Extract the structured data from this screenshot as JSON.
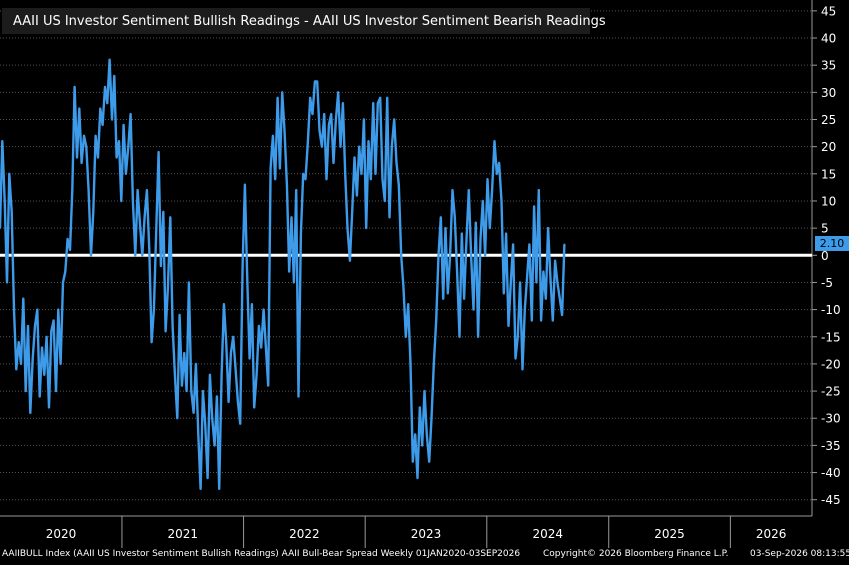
{
  "legend": {
    "label": "AAII US Investor Sentiment Bullish Readings - AAII US Investor Sentiment Bearish Readings"
  },
  "last_value_label": "2.10",
  "footer": {
    "left": "AAIIBULL Index (AAII US Investor Sentiment Bullish Readings) AAII Bull-Bear Spread Weekly 01JAN2020-03SEP2026",
    "copyright": "Copyright© 2026 Bloomberg Finance L.P.",
    "timestamp": "03-Sep-2026 08:13:55"
  },
  "colors": {
    "series": "#3d9be9",
    "zero_line": "#ffffff",
    "grid": "#555555",
    "background": "#000000",
    "legend_bg": "#1c1c1c"
  },
  "chart_data": {
    "type": "line",
    "x_start": "2020-01-01",
    "x_end": "2026-09-03",
    "x_tick_labels": [
      "2020",
      "2021",
      "2022",
      "2023",
      "2024",
      "2025",
      "2026"
    ],
    "ylim": [
      -48,
      47
    ],
    "y_ticks": [
      45,
      40,
      35,
      30,
      25,
      20,
      15,
      10,
      5,
      0,
      -5,
      -10,
      -15,
      -20,
      -25,
      -30,
      -35,
      -40,
      -45
    ],
    "grid": "horizontal dotted",
    "legend_position": "top-left",
    "reference_line": 0,
    "series": [
      {
        "name": "AAII US Investor Sentiment Bullish Readings - AAII US Investor Sentiment Bearish Readings",
        "values": [
          {
            "x": "2020-01-01",
            "y": 5
          },
          {
            "x": "2020-01-08",
            "y": 21
          },
          {
            "x": "2020-01-15",
            "y": 10
          },
          {
            "x": "2020-01-22",
            "y": -5
          },
          {
            "x": "2020-01-29",
            "y": 15
          },
          {
            "x": "2020-02-05",
            "y": 8
          },
          {
            "x": "2020-02-12",
            "y": -10
          },
          {
            "x": "2020-02-19",
            "y": -21
          },
          {
            "x": "2020-02-26",
            "y": -16
          },
          {
            "x": "2020-03-04",
            "y": -20
          },
          {
            "x": "2020-03-11",
            "y": -8
          },
          {
            "x": "2020-03-18",
            "y": -25
          },
          {
            "x": "2020-03-25",
            "y": -13
          },
          {
            "x": "2020-04-01",
            "y": -29
          },
          {
            "x": "2020-04-08",
            "y": -19
          },
          {
            "x": "2020-04-15",
            "y": -13
          },
          {
            "x": "2020-04-22",
            "y": -10
          },
          {
            "x": "2020-04-29",
            "y": -26
          },
          {
            "x": "2020-05-06",
            "y": -17
          },
          {
            "x": "2020-05-13",
            "y": -22
          },
          {
            "x": "2020-05-20",
            "y": -15
          },
          {
            "x": "2020-05-27",
            "y": -28
          },
          {
            "x": "2020-06-03",
            "y": -14
          },
          {
            "x": "2020-06-10",
            "y": -12
          },
          {
            "x": "2020-06-17",
            "y": -25
          },
          {
            "x": "2020-06-24",
            "y": -10
          },
          {
            "x": "2020-07-01",
            "y": -20
          },
          {
            "x": "2020-07-08",
            "y": -5
          },
          {
            "x": "2020-07-15",
            "y": -3
          },
          {
            "x": "2020-07-22",
            "y": 3
          },
          {
            "x": "2020-07-29",
            "y": 1
          },
          {
            "x": "2020-08-05",
            "y": 12
          },
          {
            "x": "2020-08-12",
            "y": 31
          },
          {
            "x": "2020-08-19",
            "y": 18
          },
          {
            "x": "2020-08-26",
            "y": 27
          },
          {
            "x": "2020-09-02",
            "y": 17
          },
          {
            "x": "2020-09-09",
            "y": 22
          },
          {
            "x": "2020-09-16",
            "y": 20
          },
          {
            "x": "2020-09-23",
            "y": 12
          },
          {
            "x": "2020-09-30",
            "y": 0
          },
          {
            "x": "2020-10-07",
            "y": 8
          },
          {
            "x": "2020-10-14",
            "y": 22
          },
          {
            "x": "2020-10-21",
            "y": 18
          },
          {
            "x": "2020-10-28",
            "y": 27
          },
          {
            "x": "2020-11-04",
            "y": 24
          },
          {
            "x": "2020-11-11",
            "y": 31
          },
          {
            "x": "2020-11-18",
            "y": 28
          },
          {
            "x": "2020-11-25",
            "y": 36
          },
          {
            "x": "2020-12-02",
            "y": 25
          },
          {
            "x": "2020-12-09",
            "y": 33
          },
          {
            "x": "2020-12-16",
            "y": 18
          },
          {
            "x": "2020-12-23",
            "y": 21
          },
          {
            "x": "2020-12-30",
            "y": 10
          },
          {
            "x": "2021-01-06",
            "y": 24
          },
          {
            "x": "2021-01-13",
            "y": 15
          },
          {
            "x": "2021-01-20",
            "y": 20
          },
          {
            "x": "2021-01-27",
            "y": 26
          },
          {
            "x": "2021-02-03",
            "y": 10
          },
          {
            "x": "2021-02-10",
            "y": 0
          },
          {
            "x": "2021-02-17",
            "y": 12
          },
          {
            "x": "2021-02-24",
            "y": 6
          },
          {
            "x": "2021-03-03",
            "y": 0
          },
          {
            "x": "2021-03-10",
            "y": 7
          },
          {
            "x": "2021-03-17",
            "y": 12
          },
          {
            "x": "2021-03-24",
            "y": 1
          },
          {
            "x": "2021-03-31",
            "y": -16
          },
          {
            "x": "2021-04-07",
            "y": -10
          },
          {
            "x": "2021-04-14",
            "y": 5
          },
          {
            "x": "2021-04-21",
            "y": 19
          },
          {
            "x": "2021-04-28",
            "y": -2
          },
          {
            "x": "2021-05-05",
            "y": 8
          },
          {
            "x": "2021-05-12",
            "y": -14
          },
          {
            "x": "2021-05-19",
            "y": -6
          },
          {
            "x": "2021-05-26",
            "y": 7
          },
          {
            "x": "2021-06-02",
            "y": -13
          },
          {
            "x": "2021-06-09",
            "y": -22
          },
          {
            "x": "2021-06-16",
            "y": -30
          },
          {
            "x": "2021-06-23",
            "y": -11
          },
          {
            "x": "2021-06-30",
            "y": -24
          },
          {
            "x": "2021-07-07",
            "y": -18
          },
          {
            "x": "2021-07-14",
            "y": -25
          },
          {
            "x": "2021-07-21",
            "y": -5
          },
          {
            "x": "2021-07-28",
            "y": -25
          },
          {
            "x": "2021-08-04",
            "y": -29
          },
          {
            "x": "2021-08-11",
            "y": -20
          },
          {
            "x": "2021-08-18",
            "y": -33
          },
          {
            "x": "2021-08-25",
            "y": -43
          },
          {
            "x": "2021-09-01",
            "y": -25
          },
          {
            "x": "2021-09-08",
            "y": -31
          },
          {
            "x": "2021-09-15",
            "y": -41
          },
          {
            "x": "2021-09-22",
            "y": -22
          },
          {
            "x": "2021-09-29",
            "y": -30
          },
          {
            "x": "2021-10-06",
            "y": -35
          },
          {
            "x": "2021-10-13",
            "y": -26
          },
          {
            "x": "2021-10-20",
            "y": -43
          },
          {
            "x": "2021-10-27",
            "y": -22
          },
          {
            "x": "2021-11-03",
            "y": -9
          },
          {
            "x": "2021-11-10",
            "y": -16
          },
          {
            "x": "2021-11-17",
            "y": -27
          },
          {
            "x": "2021-11-24",
            "y": -18
          },
          {
            "x": "2021-12-01",
            "y": -15
          },
          {
            "x": "2021-12-08",
            "y": -21
          },
          {
            "x": "2021-12-15",
            "y": -27
          },
          {
            "x": "2021-12-22",
            "y": -31
          },
          {
            "x": "2021-12-29",
            "y": -2
          },
          {
            "x": "2022-01-05",
            "y": 13
          },
          {
            "x": "2022-01-12",
            "y": -4
          },
          {
            "x": "2022-01-19",
            "y": -19
          },
          {
            "x": "2022-01-26",
            "y": -9
          },
          {
            "x": "2022-02-02",
            "y": -28
          },
          {
            "x": "2022-02-09",
            "y": -22
          },
          {
            "x": "2022-02-16",
            "y": -13
          },
          {
            "x": "2022-02-23",
            "y": -17
          },
          {
            "x": "2022-03-02",
            "y": -10
          },
          {
            "x": "2022-03-09",
            "y": -17
          },
          {
            "x": "2022-03-16",
            "y": -24
          },
          {
            "x": "2022-03-23",
            "y": 16
          },
          {
            "x": "2022-03-30",
            "y": 22
          },
          {
            "x": "2022-04-06",
            "y": 14
          },
          {
            "x": "2022-04-13",
            "y": 29
          },
          {
            "x": "2022-04-20",
            "y": 16
          },
          {
            "x": "2022-04-27",
            "y": 30
          },
          {
            "x": "2022-05-04",
            "y": 23
          },
          {
            "x": "2022-05-11",
            "y": 13
          },
          {
            "x": "2022-05-18",
            "y": -3
          },
          {
            "x": "2022-05-25",
            "y": 7
          },
          {
            "x": "2022-06-01",
            "y": -5
          },
          {
            "x": "2022-06-08",
            "y": 12
          },
          {
            "x": "2022-06-15",
            "y": -26
          },
          {
            "x": "2022-06-22",
            "y": 4
          },
          {
            "x": "2022-06-29",
            "y": 15
          },
          {
            "x": "2022-07-06",
            "y": 14
          },
          {
            "x": "2022-07-13",
            "y": 21
          },
          {
            "x": "2022-07-20",
            "y": 29
          },
          {
            "x": "2022-07-27",
            "y": 26
          },
          {
            "x": "2022-08-03",
            "y": 32
          },
          {
            "x": "2022-08-10",
            "y": 32
          },
          {
            "x": "2022-08-17",
            "y": 23
          },
          {
            "x": "2022-08-24",
            "y": 20
          },
          {
            "x": "2022-08-31",
            "y": 26
          },
          {
            "x": "2022-09-07",
            "y": 14
          },
          {
            "x": "2022-09-14",
            "y": 24
          },
          {
            "x": "2022-09-21",
            "y": 26
          },
          {
            "x": "2022-09-28",
            "y": 17
          },
          {
            "x": "2022-10-05",
            "y": 25
          },
          {
            "x": "2022-10-12",
            "y": 30
          },
          {
            "x": "2022-10-19",
            "y": 20
          },
          {
            "x": "2022-10-26",
            "y": 28
          },
          {
            "x": "2022-11-02",
            "y": 15
          },
          {
            "x": "2022-11-09",
            "y": 5
          },
          {
            "x": "2022-11-16",
            "y": -1
          },
          {
            "x": "2022-11-23",
            "y": 8
          },
          {
            "x": "2022-11-30",
            "y": 18
          },
          {
            "x": "2022-12-07",
            "y": 11
          },
          {
            "x": "2022-12-14",
            "y": 20
          },
          {
            "x": "2022-12-21",
            "y": 15
          },
          {
            "x": "2022-12-28",
            "y": 25
          },
          {
            "x": "2023-01-04",
            "y": 5
          },
          {
            "x": "2023-01-11",
            "y": 21
          },
          {
            "x": "2023-01-18",
            "y": 14
          },
          {
            "x": "2023-01-25",
            "y": 28
          },
          {
            "x": "2023-02-01",
            "y": 15
          },
          {
            "x": "2023-02-08",
            "y": 28
          },
          {
            "x": "2023-02-15",
            "y": 29
          },
          {
            "x": "2023-02-22",
            "y": 14
          },
          {
            "x": "2023-03-01",
            "y": 10
          },
          {
            "x": "2023-03-08",
            "y": 29
          },
          {
            "x": "2023-03-15",
            "y": 7
          },
          {
            "x": "2023-03-22",
            "y": 20
          },
          {
            "x": "2023-03-29",
            "y": 25
          },
          {
            "x": "2023-04-05",
            "y": 17
          },
          {
            "x": "2023-04-12",
            "y": 13
          },
          {
            "x": "2023-04-19",
            "y": 0
          },
          {
            "x": "2023-04-26",
            "y": -6
          },
          {
            "x": "2023-05-03",
            "y": -15
          },
          {
            "x": "2023-05-10",
            "y": -9
          },
          {
            "x": "2023-05-17",
            "y": -20
          },
          {
            "x": "2023-05-24",
            "y": -38
          },
          {
            "x": "2023-05-31",
            "y": -33
          },
          {
            "x": "2023-06-07",
            "y": -41
          },
          {
            "x": "2023-06-14",
            "y": -28
          },
          {
            "x": "2023-06-21",
            "y": -35
          },
          {
            "x": "2023-06-28",
            "y": -25
          },
          {
            "x": "2023-07-05",
            "y": -33
          },
          {
            "x": "2023-07-12",
            "y": -38
          },
          {
            "x": "2023-07-19",
            "y": -30
          },
          {
            "x": "2023-07-26",
            "y": -20
          },
          {
            "x": "2023-08-02",
            "y": -12
          },
          {
            "x": "2023-08-09",
            "y": 0
          },
          {
            "x": "2023-08-16",
            "y": 7
          },
          {
            "x": "2023-08-23",
            "y": -8
          },
          {
            "x": "2023-08-30",
            "y": 5
          },
          {
            "x": "2023-09-06",
            "y": -7
          },
          {
            "x": "2023-09-13",
            "y": 0
          },
          {
            "x": "2023-09-20",
            "y": 12
          },
          {
            "x": "2023-09-27",
            "y": 7
          },
          {
            "x": "2023-10-04",
            "y": -3
          },
          {
            "x": "2023-10-11",
            "y": -15
          },
          {
            "x": "2023-10-18",
            "y": 4
          },
          {
            "x": "2023-10-25",
            "y": -8
          },
          {
            "x": "2023-11-01",
            "y": 3
          },
          {
            "x": "2023-11-08",
            "y": 12
          },
          {
            "x": "2023-11-15",
            "y": 0
          },
          {
            "x": "2023-11-22",
            "y": -10
          },
          {
            "x": "2023-11-29",
            "y": 6
          },
          {
            "x": "2023-12-06",
            "y": -15
          },
          {
            "x": "2023-12-13",
            "y": 3
          },
          {
            "x": "2023-12-20",
            "y": 10
          },
          {
            "x": "2023-12-27",
            "y": 0
          },
          {
            "x": "2024-01-03",
            "y": 14
          },
          {
            "x": "2024-01-10",
            "y": 5
          },
          {
            "x": "2024-01-17",
            "y": 12
          },
          {
            "x": "2024-01-24",
            "y": 21
          },
          {
            "x": "2024-01-31",
            "y": 15
          },
          {
            "x": "2024-02-07",
            "y": 17
          },
          {
            "x": "2024-02-14",
            "y": 10
          },
          {
            "x": "2024-02-21",
            "y": -7
          },
          {
            "x": "2024-02-28",
            "y": 4
          },
          {
            "x": "2024-03-06",
            "y": -13
          },
          {
            "x": "2024-03-13",
            "y": -5
          },
          {
            "x": "2024-03-20",
            "y": 2
          },
          {
            "x": "2024-03-27",
            "y": -19
          },
          {
            "x": "2024-04-03",
            "y": -15
          },
          {
            "x": "2024-04-10",
            "y": -5
          },
          {
            "x": "2024-04-17",
            "y": -21
          },
          {
            "x": "2024-04-24",
            "y": -10
          },
          {
            "x": "2024-05-01",
            "y": -4
          },
          {
            "x": "2024-05-08",
            "y": 2
          },
          {
            "x": "2024-05-15",
            "y": -12
          },
          {
            "x": "2024-05-22",
            "y": 9
          },
          {
            "x": "2024-05-29",
            "y": -5
          },
          {
            "x": "2024-06-05",
            "y": 12
          },
          {
            "x": "2024-06-12",
            "y": -12
          },
          {
            "x": "2024-06-19",
            "y": -3
          },
          {
            "x": "2024-06-26",
            "y": -8
          },
          {
            "x": "2024-07-03",
            "y": 5
          },
          {
            "x": "2024-07-10",
            "y": -4
          },
          {
            "x": "2024-07-17",
            "y": -12
          },
          {
            "x": "2024-07-24",
            "y": -1
          },
          {
            "x": "2024-07-31",
            "y": -5
          },
          {
            "x": "2024-08-07",
            "y": -8
          },
          {
            "x": "2024-08-14",
            "y": -11
          },
          {
            "x": "2024-08-21",
            "y": 2
          }
        ]
      }
    ]
  }
}
